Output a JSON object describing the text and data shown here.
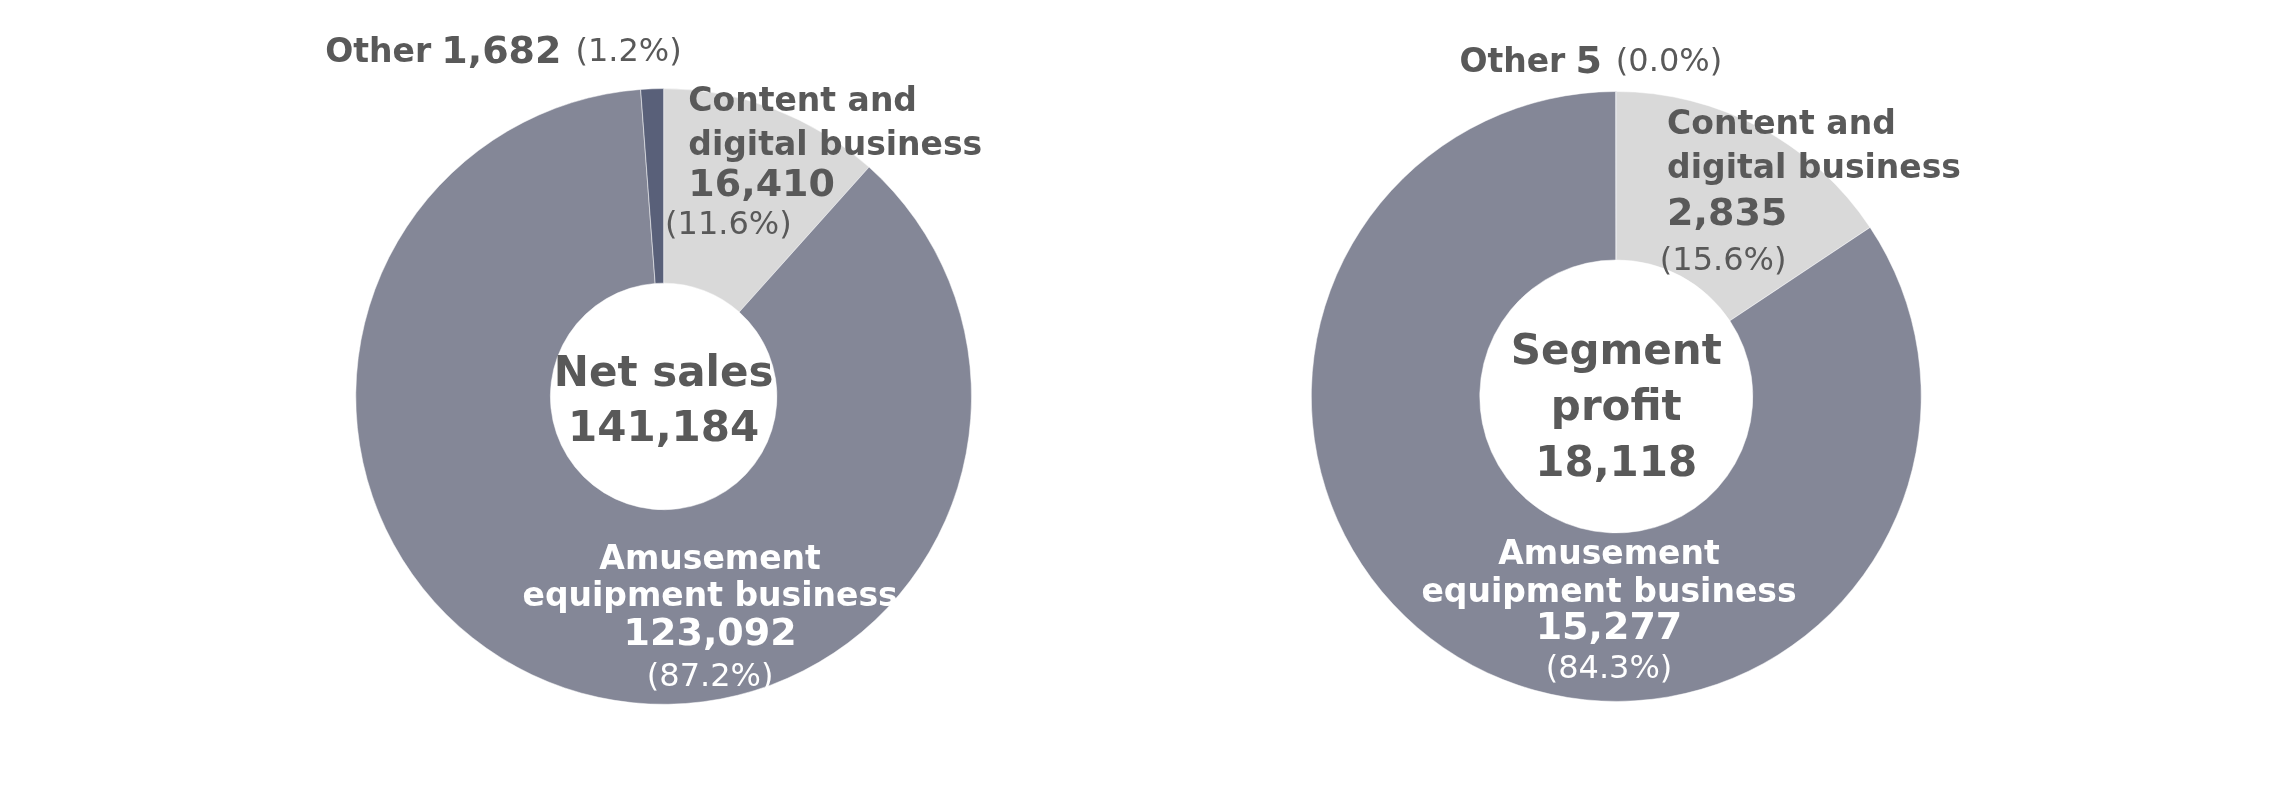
{
  "chart_data": [
    {
      "type": "donut",
      "title": "Net sales",
      "subtitle": "141,184",
      "categories": [
        "Content and digital business",
        "Amusement equipment business",
        "Other"
      ],
      "values": [
        16410,
        123092,
        1682
      ],
      "colors": [
        "#d9d9d9",
        "#848797",
        "#596079"
      ],
      "value_labels": [
        "16,410 (11.6%)",
        "123,092 (87.2%)",
        "1,682 (1.2%)"
      ]
    },
    {
      "type": "donut",
      "title": "Segment profit",
      "subtitle": "18,118",
      "categories": [
        "Content and digital business",
        "Amusement equipment business",
        "Other"
      ],
      "values": [
        2835,
        15277,
        5
      ],
      "colors": [
        "#d9d9d9",
        "#848797",
        "#596079"
      ],
      "value_labels": [
        "2,835 (15.6%)",
        "15,277 (84.3%)",
        "5 (0.0%)"
      ]
    }
  ]
}
